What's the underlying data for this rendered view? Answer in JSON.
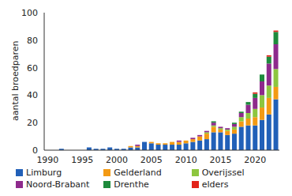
{
  "chart_data": {
    "type": "bar",
    "stacked": true,
    "legend": "bottom",
    "grid": false,
    "y_label": "aantal broedparen",
    "categories": [
      1990,
      null,
      null,
      null,
      null,
      1995,
      null,
      null,
      null,
      null,
      2000,
      null,
      null,
      null,
      null,
      2005,
      null,
      null,
      null,
      null,
      2010,
      null,
      null,
      null,
      null,
      2015,
      null,
      null,
      null,
      null,
      2020,
      null,
      null,
      null
    ],
    "ylim": [
      0,
      100
    ],
    "yticks": [
      0,
      20,
      40,
      60,
      80,
      100
    ],
    "series": [
      {
        "name": "Limburg",
        "color": "#2160b8",
        "values": [
          0,
          0,
          1,
          0,
          0,
          0,
          2,
          1,
          1,
          2,
          1,
          1,
          2,
          2,
          6,
          5,
          4,
          4,
          4,
          4,
          5,
          6,
          7,
          8,
          13,
          13,
          11,
          12,
          17,
          18,
          18,
          22,
          26,
          37
        ]
      },
      {
        "name": "Gelderland",
        "color": "#f39a14",
        "values": [
          0,
          0,
          0,
          0,
          0,
          0,
          0,
          0,
          0,
          0,
          0,
          0,
          1,
          1,
          0,
          1,
          1,
          1,
          2,
          2,
          2,
          2,
          3,
          4,
          4,
          2,
          3,
          3,
          4,
          5,
          6,
          9,
          12,
          9
        ]
      },
      {
        "name": "Overijssel",
        "color": "#8dc63f",
        "values": [
          0,
          0,
          0,
          0,
          0,
          0,
          0,
          0,
          0,
          0,
          0,
          0,
          0,
          0,
          0,
          0,
          0,
          0,
          0,
          0,
          0,
          0,
          0,
          1,
          1,
          1,
          1,
          2,
          3,
          4,
          6,
          9,
          9,
          13
        ]
      },
      {
        "name": "Noord-Brabant",
        "color": "#8e2a8c",
        "values": [
          0,
          0,
          0,
          0,
          0,
          0,
          0,
          0,
          0,
          0,
          0,
          0,
          0,
          1,
          0,
          0,
          0,
          0,
          0,
          1,
          0,
          1,
          1,
          1,
          2,
          1,
          1,
          2,
          3,
          6,
          8,
          10,
          16,
          18
        ]
      },
      {
        "name": "Drenthe",
        "color": "#1e8a3c",
        "values": [
          0,
          0,
          0,
          0,
          0,
          0,
          0,
          0,
          0,
          0,
          0,
          0,
          0,
          0,
          0,
          0,
          0,
          0,
          0,
          0,
          0,
          0,
          0,
          0,
          1,
          0,
          0,
          1,
          1,
          2,
          3,
          5,
          5,
          9
        ]
      },
      {
        "name": "elders",
        "color": "#e2231a",
        "values": [
          0,
          0,
          0,
          0,
          0,
          0,
          0,
          0,
          0,
          0,
          0,
          0,
          0,
          0,
          0,
          0,
          0,
          0,
          0,
          0,
          0,
          0,
          0,
          0,
          0,
          0,
          0,
          0,
          0,
          0,
          1,
          0,
          1,
          1
        ]
      }
    ]
  }
}
